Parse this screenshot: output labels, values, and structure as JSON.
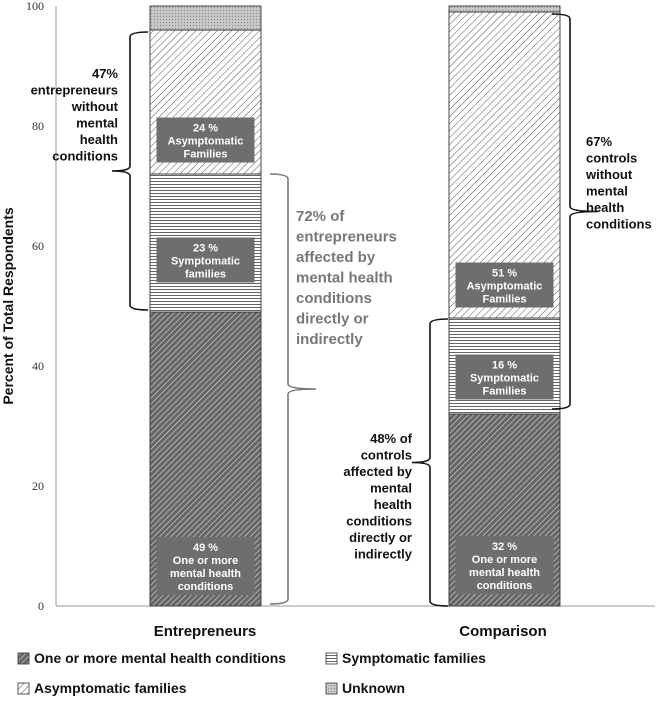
{
  "chart_data": {
    "type": "bar",
    "stacked": true,
    "categories": [
      "Entrepreneurs",
      "Comparison"
    ],
    "ylabel": "Percent of Total Respondents",
    "ylim": [
      0,
      100
    ],
    "yticks": [
      "0",
      "20",
      "40",
      "60",
      "80",
      "100"
    ],
    "series": [
      {
        "name": "One or more mental health conditions",
        "values": [
          49,
          32
        ],
        "labels": [
          [
            "49 %",
            "One or more",
            "mental health",
            "conditions"
          ],
          [
            "32 %",
            "One or more",
            "mental health",
            "conditions"
          ]
        ]
      },
      {
        "name": "Symptomatic families",
        "values": [
          23,
          16
        ],
        "labels": [
          [
            "23 %",
            "Symptomatic",
            "families"
          ],
          [
            "16 %",
            "Symptomatic",
            "Families"
          ]
        ]
      },
      {
        "name": "Asymptomatic families",
        "values": [
          24,
          51
        ],
        "labels": [
          [
            "24 %",
            "Asymptomatic",
            "Families"
          ],
          [
            "51 %",
            "Asymptomatic",
            "Families"
          ]
        ]
      },
      {
        "name": "Unknown",
        "values": [
          4,
          1
        ],
        "labels": [
          [],
          []
        ]
      }
    ],
    "annotations": [
      {
        "lines": [
          "47%",
          "entrepreneurs",
          "without",
          "mental",
          "health",
          "conditions"
        ]
      },
      {
        "lines": [
          "72% of",
          "entrepreneurs",
          "affected by",
          "mental health",
          "conditions",
          "directly or",
          "indirectly"
        ]
      },
      {
        "lines": [
          "67%",
          "controls",
          "without",
          "mental",
          "health",
          "conditions"
        ]
      },
      {
        "lines": [
          "48% of",
          "controls",
          "affected by",
          "mental",
          "health",
          "conditions",
          "directly or",
          "indirectly"
        ]
      }
    ],
    "legend": [
      {
        "label": "One or more mental health conditions"
      },
      {
        "label": "Symptomatic families"
      },
      {
        "label": "Asymptomatic families"
      },
      {
        "label": "Unknown"
      }
    ]
  }
}
